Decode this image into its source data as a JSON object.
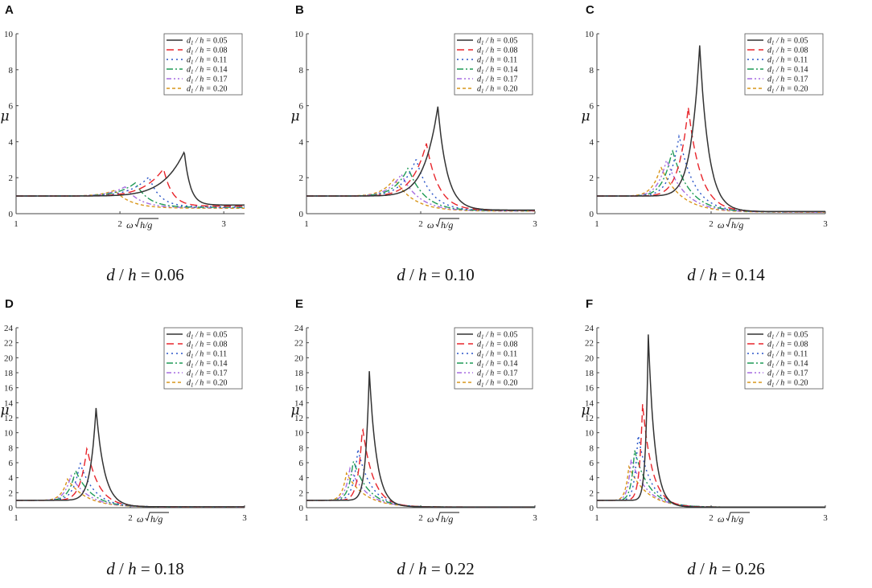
{
  "series_styles": [
    {
      "name": "d1/h = 0.05",
      "label_value": "0.05",
      "color": "#333333",
      "dash": ""
    },
    {
      "name": "d1/h = 0.08",
      "label_value": "0.08",
      "color": "#e8252b",
      "dash": "9,5"
    },
    {
      "name": "d1/h = 0.11",
      "label_value": "0.11",
      "color": "#2a55c8",
      "dash": "2,4"
    },
    {
      "name": "d1/h = 0.14",
      "label_value": "0.14",
      "color": "#1f9a56",
      "dash": "8,3,2,3"
    },
    {
      "name": "d1/h = 0.17",
      "label_value": "0.17",
      "color": "#a66be0",
      "dash": "6,3,2,3,2,3"
    },
    {
      "name": "d1/h = 0.20",
      "label_value": "0.20",
      "color": "#d9961a",
      "dash": "4,3"
    }
  ],
  "legend_prefix": "d",
  "legend_sub": "1",
  "legend_mid": " / h = ",
  "y_axis_label": "μ",
  "x_axis_label_prefix": "ω",
  "x_axis_label_sqrt": "h/g",
  "chart_data": [
    {
      "type": "line",
      "panel": "A",
      "caption_value": "0.06",
      "xlim": [
        1,
        3.2
      ],
      "ylim": [
        0,
        10
      ],
      "xticks": [
        1,
        2,
        3
      ],
      "yticks": [
        0,
        2,
        4,
        6,
        8,
        10
      ],
      "series": [
        {
          "name": "d1/h = 0.05",
          "peak_x": 2.62,
          "peak_y": 3.45,
          "end_y": 0.48
        },
        {
          "name": "d1/h = 0.08",
          "peak_x": 2.42,
          "peak_y": 2.5,
          "end_y": 0.42
        },
        {
          "name": "d1/h = 0.11",
          "peak_x": 2.28,
          "peak_y": 2.05,
          "end_y": 0.38
        },
        {
          "name": "d1/h = 0.14",
          "peak_x": 2.15,
          "peak_y": 1.72,
          "end_y": 0.35
        },
        {
          "name": "d1/h = 0.17",
          "peak_x": 2.05,
          "peak_y": 1.5,
          "end_y": 0.33
        },
        {
          "name": "d1/h = 0.20",
          "peak_x": 1.95,
          "peak_y": 1.3,
          "end_y": 0.3
        }
      ]
    },
    {
      "type": "line",
      "panel": "B",
      "caption_value": "0.10",
      "xlim": [
        1,
        3
      ],
      "ylim": [
        0,
        10
      ],
      "xticks": [
        1,
        2,
        3
      ],
      "yticks": [
        0,
        2,
        4,
        6,
        8,
        10
      ],
      "series": [
        {
          "name": "d1/h = 0.05",
          "peak_x": 2.15,
          "peak_y": 5.95,
          "end_y": 0.2
        },
        {
          "name": "d1/h = 0.08",
          "peak_x": 2.05,
          "peak_y": 3.9,
          "end_y": 0.18
        },
        {
          "name": "d1/h = 0.11",
          "peak_x": 1.96,
          "peak_y": 3.05,
          "end_y": 0.17
        },
        {
          "name": "d1/h = 0.14",
          "peak_x": 1.89,
          "peak_y": 2.55,
          "end_y": 0.16
        },
        {
          "name": "d1/h = 0.17",
          "peak_x": 1.83,
          "peak_y": 2.2,
          "end_y": 0.15
        },
        {
          "name": "d1/h = 0.20",
          "peak_x": 1.77,
          "peak_y": 1.95,
          "end_y": 0.14
        }
      ]
    },
    {
      "type": "line",
      "panel": "C",
      "caption_value": "0.14",
      "xlim": [
        1,
        3
      ],
      "ylim": [
        0,
        10
      ],
      "xticks": [
        1,
        2,
        3
      ],
      "yticks": [
        0,
        2,
        4,
        6,
        8,
        10
      ],
      "series": [
        {
          "name": "d1/h = 0.05",
          "peak_x": 1.9,
          "peak_y": 9.35,
          "end_y": 0.12
        },
        {
          "name": "d1/h = 0.08",
          "peak_x": 1.8,
          "peak_y": 5.9,
          "end_y": 0.11
        },
        {
          "name": "d1/h = 0.11",
          "peak_x": 1.72,
          "peak_y": 4.35,
          "end_y": 0.1
        },
        {
          "name": "d1/h = 0.14",
          "peak_x": 1.66,
          "peak_y": 3.55,
          "end_y": 0.1
        },
        {
          "name": "d1/h = 0.17",
          "peak_x": 1.61,
          "peak_y": 3.0,
          "end_y": 0.09
        },
        {
          "name": "d1/h = 0.20",
          "peak_x": 1.56,
          "peak_y": 2.6,
          "end_y": 0.08
        }
      ]
    },
    {
      "type": "line",
      "panel": "D",
      "caption_value": "0.18",
      "xlim": [
        1,
        3
      ],
      "ylim": [
        0,
        24
      ],
      "xticks": [
        1,
        2,
        3
      ],
      "yticks": [
        0,
        2,
        4,
        6,
        8,
        10,
        12,
        14,
        16,
        18,
        20,
        22,
        24
      ],
      "series": [
        {
          "name": "d1/h = 0.05",
          "peak_x": 1.7,
          "peak_y": 13.3,
          "end_y": 0.12
        },
        {
          "name": "d1/h = 0.08",
          "peak_x": 1.62,
          "peak_y": 8.0,
          "end_y": 0.1
        },
        {
          "name": "d1/h = 0.11",
          "peak_x": 1.56,
          "peak_y": 6.0,
          "end_y": 0.1
        },
        {
          "name": "d1/h = 0.14",
          "peak_x": 1.52,
          "peak_y": 5.0,
          "end_y": 0.09
        },
        {
          "name": "d1/h = 0.17",
          "peak_x": 1.48,
          "peak_y": 4.3,
          "end_y": 0.08
        },
        {
          "name": "d1/h = 0.20",
          "peak_x": 1.45,
          "peak_y": 3.8,
          "end_y": 0.08
        }
      ]
    },
    {
      "type": "line",
      "panel": "E",
      "caption_value": "0.22",
      "xlim": [
        1,
        3
      ],
      "ylim": [
        0,
        24
      ],
      "xticks": [
        1,
        2,
        3
      ],
      "yticks": [
        0,
        2,
        4,
        6,
        8,
        10,
        12,
        14,
        16,
        18,
        20,
        22,
        24
      ],
      "series": [
        {
          "name": "d1/h = 0.05",
          "peak_x": 1.55,
          "peak_y": 18.2,
          "end_y": 0.1
        },
        {
          "name": "d1/h = 0.08",
          "peak_x": 1.49,
          "peak_y": 10.8,
          "end_y": 0.09
        },
        {
          "name": "d1/h = 0.11",
          "peak_x": 1.45,
          "peak_y": 7.8,
          "end_y": 0.08
        },
        {
          "name": "d1/h = 0.14",
          "peak_x": 1.41,
          "peak_y": 6.3,
          "end_y": 0.08
        },
        {
          "name": "d1/h = 0.17",
          "peak_x": 1.38,
          "peak_y": 5.3,
          "end_y": 0.07
        },
        {
          "name": "d1/h = 0.20",
          "peak_x": 1.35,
          "peak_y": 4.6,
          "end_y": 0.07
        }
      ]
    },
    {
      "type": "line",
      "panel": "F",
      "caption_value": "0.26",
      "xlim": [
        1,
        3
      ],
      "ylim": [
        0,
        24
      ],
      "xticks": [
        1,
        2,
        3
      ],
      "yticks": [
        0,
        2,
        4,
        6,
        8,
        10,
        12,
        14,
        16,
        18,
        20,
        22,
        24
      ],
      "series": [
        {
          "name": "d1/h = 0.05",
          "peak_x": 1.45,
          "peak_y": 23.1,
          "end_y": 0.08
        },
        {
          "name": "d1/h = 0.08",
          "peak_x": 1.4,
          "peak_y": 13.8,
          "end_y": 0.08
        },
        {
          "name": "d1/h = 0.11",
          "peak_x": 1.36,
          "peak_y": 9.8,
          "end_y": 0.07
        },
        {
          "name": "d1/h = 0.14",
          "peak_x": 1.33,
          "peak_y": 7.7,
          "end_y": 0.07
        },
        {
          "name": "d1/h = 0.17",
          "peak_x": 1.3,
          "peak_y": 6.4,
          "end_y": 0.06
        },
        {
          "name": "d1/h = 0.20",
          "peak_x": 1.28,
          "peak_y": 5.5,
          "end_y": 0.06
        }
      ]
    }
  ],
  "caption_prefix_d": "d",
  "caption_sep": " / ",
  "caption_h": "h",
  "caption_eq": " = "
}
